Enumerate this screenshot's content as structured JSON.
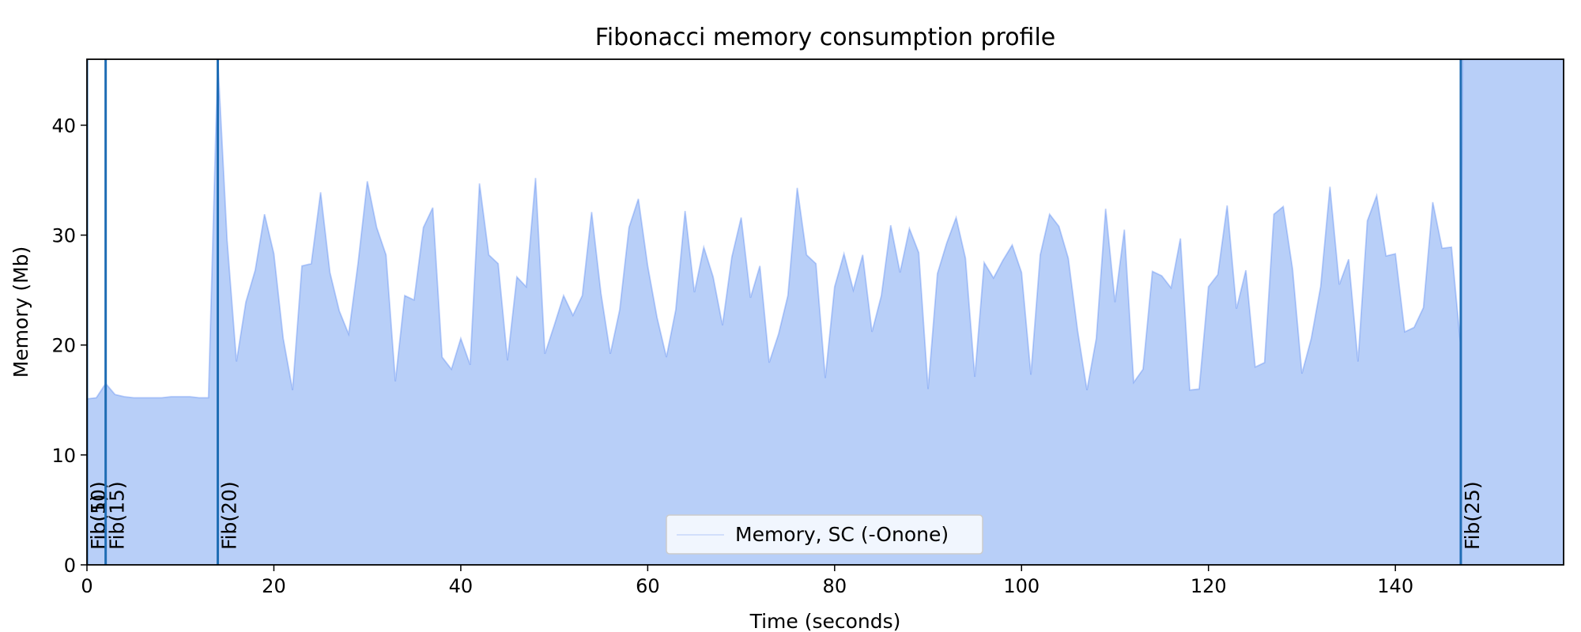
{
  "chart_data": {
    "type": "area",
    "title": "Fibonacci memory consumption profile",
    "xlabel": "Time (seconds)",
    "ylabel": "Memory (Mb)",
    "xlim": [
      0,
      158
    ],
    "ylim": [
      0,
      46
    ],
    "xticks": [
      0,
      20,
      40,
      60,
      80,
      100,
      120,
      140
    ],
    "yticks": [
      0,
      10,
      20,
      30,
      40
    ],
    "grid": false,
    "legend_position": "bottom-center",
    "series": [
      {
        "name": "Memory, SC (-Onone)",
        "color": "#4b7ef0",
        "fill": "#b8cff8",
        "x": [
          0,
          1,
          2,
          3,
          4,
          5,
          6,
          7,
          8,
          9,
          10,
          11,
          12,
          13,
          14,
          15,
          16,
          17,
          18,
          19,
          20,
          21,
          22,
          23,
          24,
          25,
          26,
          27,
          28,
          29,
          30,
          31,
          32,
          33,
          34,
          35,
          36,
          37,
          38,
          39,
          40,
          41,
          42,
          43,
          44,
          45,
          46,
          47,
          48,
          49,
          50,
          51,
          52,
          53,
          54,
          55,
          56,
          57,
          58,
          59,
          60,
          61,
          62,
          63,
          64,
          65,
          66,
          67,
          68,
          69,
          70,
          71,
          72,
          73,
          74,
          75,
          76,
          77,
          78,
          79,
          80,
          81,
          82,
          83,
          84,
          85,
          86,
          87,
          88,
          89,
          90,
          91,
          92,
          93,
          94,
          95,
          96,
          97,
          98,
          99,
          100,
          101,
          102,
          103,
          104,
          105,
          106,
          107,
          108,
          109,
          110,
          111,
          112,
          113,
          114,
          115,
          116,
          117,
          118,
          119,
          120,
          121,
          122,
          123,
          124,
          125,
          126,
          127,
          128,
          129,
          130,
          131,
          132,
          133,
          134,
          135,
          136,
          137,
          138,
          139,
          140,
          141,
          142,
          143,
          144,
          145,
          146,
          147,
          147.2,
          158
        ],
        "y": [
          15.1,
          15.2,
          16.5,
          15.5,
          15.3,
          15.2,
          15.2,
          15.2,
          15.2,
          15.3,
          15.3,
          15.3,
          15.2,
          15.2,
          46.0,
          29.5,
          18.5,
          23.9,
          26.8,
          31.9,
          28.3,
          20.6,
          15.9,
          27.2,
          27.4,
          33.9,
          26.6,
          23.1,
          21.0,
          27.4,
          34.9,
          30.7,
          28.2,
          16.7,
          24.5,
          24.1,
          30.7,
          32.5,
          18.9,
          17.8,
          20.6,
          18.2,
          34.7,
          28.2,
          27.4,
          18.6,
          26.2,
          25.3,
          35.2,
          19.2,
          21.8,
          24.5,
          22.7,
          24.5,
          32.1,
          24.7,
          19.2,
          23.2,
          30.7,
          33.3,
          27.2,
          22.5,
          18.9,
          23.2,
          32.2,
          24.8,
          28.9,
          26.2,
          21.8,
          28.0,
          31.6,
          24.3,
          27.2,
          18.4,
          21.0,
          24.5,
          34.3,
          28.2,
          27.4,
          17.0,
          25.3,
          28.3,
          25.0,
          28.2,
          21.2,
          24.5,
          30.9,
          26.6,
          30.6,
          28.4,
          16.0,
          26.5,
          29.3,
          31.6,
          27.9,
          17.1,
          27.5,
          26.1,
          27.7,
          29.1,
          26.6,
          17.3,
          28.2,
          31.9,
          30.8,
          27.9,
          21.3,
          15.9,
          20.6,
          32.4,
          23.9,
          30.5,
          16.6,
          17.8,
          26.7,
          26.3,
          25.2,
          29.7,
          15.9,
          16.0,
          25.3,
          26.4,
          32.7,
          23.3,
          26.8,
          18.0,
          18.4,
          31.9,
          32.6,
          26.9,
          17.4,
          20.6,
          25.3,
          34.4,
          25.5,
          27.8,
          18.5,
          31.3,
          33.6,
          28.1,
          28.3,
          21.2,
          21.6,
          23.4,
          33.0,
          28.8,
          28.9,
          19.8,
          46.0,
          46.0
        ]
      }
    ],
    "markers": [
      {
        "label": "Fib(5)",
        "x": 0
      },
      {
        "label": "Fib(10)",
        "x": 0
      },
      {
        "label": "Fib(15)",
        "x": 2
      },
      {
        "label": "Fib(20)",
        "x": 14
      },
      {
        "label": "Fib(25)",
        "x": 147
      }
    ],
    "marker_color": "#1f6db5"
  }
}
